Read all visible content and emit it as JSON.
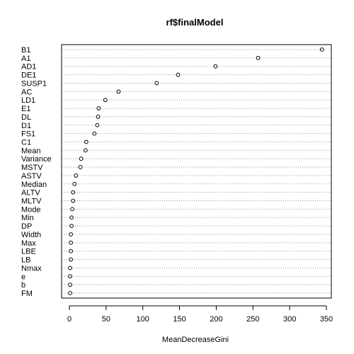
{
  "chart_data": {
    "type": "scatter",
    "title": "rf$finalModel",
    "xlabel": "MeanDecreaseGini",
    "ylabel": "",
    "xlim": [
      0,
      350
    ],
    "xticks": [
      0,
      50,
      100,
      150,
      200,
      250,
      300,
      350
    ],
    "grid": "dotted horizontal",
    "categories": [
      "B1",
      "A1",
      "AD1",
      "DE1",
      "SUSP1",
      "AC",
      "LD1",
      "E1",
      "DL",
      "D1",
      "FS1",
      "C1",
      "Mean",
      "Variance",
      "MSTV",
      "ASTV",
      "Median",
      "ALTV",
      "MLTV",
      "Mode",
      "Min",
      "DP",
      "Width",
      "Max",
      "LBE",
      "LB",
      "Nmax",
      "e",
      "b",
      "FM"
    ],
    "values": [
      344,
      257,
      199,
      148,
      119,
      67,
      49,
      40,
      39,
      38,
      34,
      23,
      22,
      16,
      15,
      9,
      7,
      5,
      5,
      4,
      3,
      3,
      2,
      2,
      2,
      2,
      1,
      1,
      1,
      1
    ]
  }
}
